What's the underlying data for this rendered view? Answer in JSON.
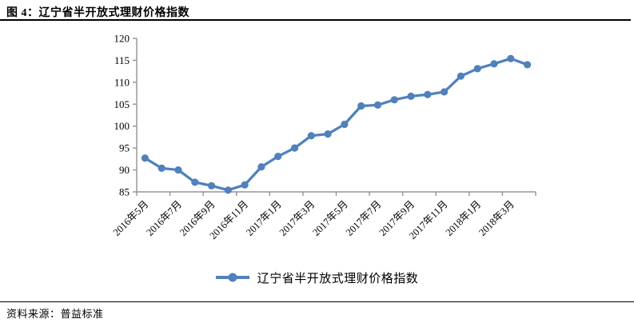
{
  "header": {
    "title": "图 4：辽宁省半开放式理财价格指数"
  },
  "chart_data": {
    "type": "line",
    "title": "图 4：辽宁省半开放式理财价格指数",
    "legend": "辽宁省半开放式理财价格指数",
    "legend_position": "bottom",
    "grid": false,
    "categories": [
      "2016年5月",
      "2016年6月",
      "2016年7月",
      "2016年8月",
      "2016年9月",
      "2016年10月",
      "2016年11月",
      "2016年12月",
      "2017年1月",
      "2017年2月",
      "2017年3月",
      "2017年4月",
      "2017年5月",
      "2017年6月",
      "2017年7月",
      "2017年8月",
      "2017年9月",
      "2017年10月",
      "2017年11月",
      "2017年12月",
      "2018年1月",
      "2018年2月",
      "2018年3月",
      "2018年4月"
    ],
    "values": [
      92.7,
      90.4,
      90.0,
      87.2,
      86.4,
      85.4,
      86.6,
      90.7,
      93.1,
      95.0,
      97.8,
      98.2,
      100.4,
      104.6,
      104.8,
      106.0,
      106.8,
      107.2,
      107.8,
      111.4,
      113.1,
      114.2,
      115.4,
      114.0
    ],
    "ylim": [
      85,
      120
    ],
    "ytick_step": 5,
    "x_tick_every": 2,
    "x_tick_labels": [
      "2016年5月",
      "2016年7月",
      "2016年9月",
      "2016年11月",
      "2017年1月",
      "2017年3月",
      "2017年5月",
      "2017年7月",
      "2017年9月",
      "2017年11月",
      "2018年1月",
      "2018年3月"
    ],
    "line_color": "#4F81BD",
    "axis_color": "#939393",
    "label_color": "#000000"
  },
  "footer": {
    "source": "资料来源：普益标准"
  }
}
